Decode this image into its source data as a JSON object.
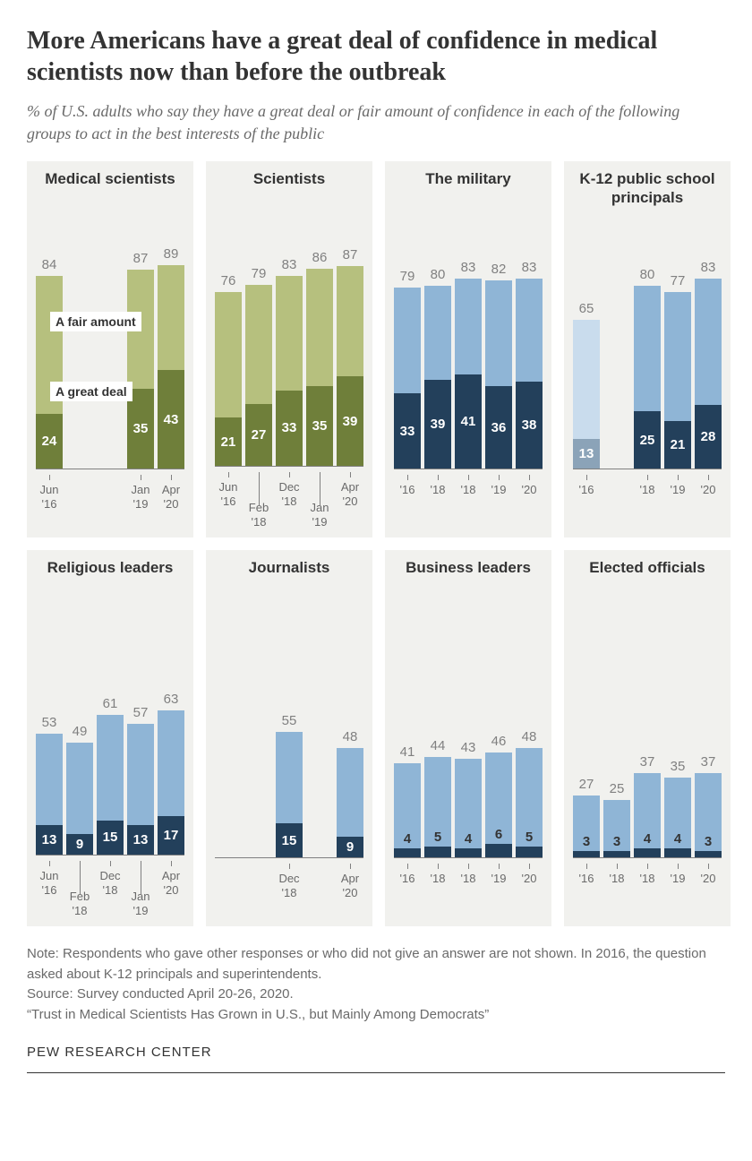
{
  "title": "More Americans have a great deal of confidence in medical scientists now than before the outbreak",
  "subtitle": "% of U.S. adults who say they have a great deal or fair amount of confidence in each of the following groups to act in the best interests of the public",
  "legend": {
    "fair": "A fair amount",
    "great": "A great deal"
  },
  "colors": {
    "green_light": "#b6c07e",
    "green_dark": "#6f7f3a",
    "blue_light": "#8fb5d6",
    "blue_dark": "#23405b",
    "blue_light_faded": "#c9dced",
    "blue_dark_faded": "#8ba3b8",
    "panel_bg": "#f1f1ee",
    "total_label": "#808080",
    "axis_label": "#6a6a6a"
  },
  "chart": {
    "yMax": 100,
    "barHeightPx": 256,
    "barWidthPx": 30,
    "barGapPx": 4
  },
  "panels": [
    {
      "title": "Medical scientists",
      "scheme": "green",
      "axisStyle": "twoLine",
      "showLegend": true,
      "bars": [
        {
          "label": [
            "Jun",
            "'16"
          ],
          "total": 84,
          "great": 24
        },
        {
          "spacer": true
        },
        {
          "spacer": true
        },
        {
          "label": [
            "Jan",
            "'19"
          ],
          "total": 87,
          "great": 35
        },
        {
          "label": [
            "Apr",
            "'20"
          ],
          "total": 89,
          "great": 43
        }
      ]
    },
    {
      "title": "Scientists",
      "scheme": "green",
      "axisStyle": "staggered",
      "bars": [
        {
          "label": [
            "Jun",
            "'16"
          ],
          "total": 76,
          "great": 21
        },
        {
          "label": [
            "Feb",
            "'18"
          ],
          "offset": true,
          "total": 79,
          "great": 27
        },
        {
          "label": [
            "Dec",
            "'18"
          ],
          "total": 83,
          "great": 33
        },
        {
          "label": [
            "Jan",
            "'19"
          ],
          "offset": true,
          "total": 86,
          "great": 35
        },
        {
          "label": [
            "Apr",
            "'20"
          ],
          "total": 87,
          "great": 39
        }
      ]
    },
    {
      "title": "The military",
      "scheme": "blue",
      "axisStyle": "short",
      "bars": [
        {
          "label": [
            "'16"
          ],
          "total": 79,
          "great": 33
        },
        {
          "label": [
            "'18"
          ],
          "total": 80,
          "great": 39
        },
        {
          "label": [
            "'18"
          ],
          "total": 83,
          "great": 41
        },
        {
          "label": [
            "'19"
          ],
          "total": 82,
          "great": 36
        },
        {
          "label": [
            "'20"
          ],
          "total": 83,
          "great": 38
        }
      ]
    },
    {
      "title": "K-12 public school principals",
      "scheme": "blue",
      "axisStyle": "short",
      "bars": [
        {
          "label": [
            "'16"
          ],
          "total": 65,
          "great": 13,
          "faded": true
        },
        {
          "spacer": true
        },
        {
          "label": [
            "'18"
          ],
          "total": 80,
          "great": 25
        },
        {
          "label": [
            "'19"
          ],
          "total": 77,
          "great": 21
        },
        {
          "label": [
            "'20"
          ],
          "total": 83,
          "great": 28
        }
      ]
    },
    {
      "title": "Religious leaders",
      "scheme": "blue",
      "axisStyle": "staggered",
      "bars": [
        {
          "label": [
            "Jun",
            "'16"
          ],
          "total": 53,
          "great": 13
        },
        {
          "label": [
            "Feb",
            "'18"
          ],
          "offset": true,
          "total": 49,
          "great": 9
        },
        {
          "label": [
            "Dec",
            "'18"
          ],
          "total": 61,
          "great": 15
        },
        {
          "label": [
            "Jan",
            "'19"
          ],
          "offset": true,
          "total": 57,
          "great": 13
        },
        {
          "label": [
            "Apr",
            "'20"
          ],
          "total": 63,
          "great": 17
        }
      ]
    },
    {
      "title": "Journalists",
      "scheme": "blue",
      "axisStyle": "twoLine",
      "bars": [
        {
          "spacer": true
        },
        {
          "spacer": true
        },
        {
          "label": [
            "Dec",
            "'18"
          ],
          "total": 55,
          "great": 15
        },
        {
          "spacer": true
        },
        {
          "label": [
            "Apr",
            "'20"
          ],
          "total": 48,
          "great": 9
        }
      ]
    },
    {
      "title": "Business leaders",
      "scheme": "blue",
      "axisStyle": "short",
      "bars": [
        {
          "label": [
            "'16"
          ],
          "total": 41,
          "great": 4,
          "darkText": true
        },
        {
          "label": [
            "'18"
          ],
          "total": 44,
          "great": 5,
          "darkText": true
        },
        {
          "label": [
            "'18"
          ],
          "total": 43,
          "great": 4,
          "darkText": true
        },
        {
          "label": [
            "'19"
          ],
          "total": 46,
          "great": 6,
          "darkText": true
        },
        {
          "label": [
            "'20"
          ],
          "total": 48,
          "great": 5,
          "darkText": true
        }
      ]
    },
    {
      "title": "Elected officials",
      "scheme": "blue",
      "axisStyle": "short",
      "bars": [
        {
          "label": [
            "'16"
          ],
          "total": 27,
          "great": 3,
          "darkText": true
        },
        {
          "label": [
            "'18"
          ],
          "total": 25,
          "great": 3,
          "darkText": true
        },
        {
          "label": [
            "'18"
          ],
          "total": 37,
          "great": 4,
          "darkText": true
        },
        {
          "label": [
            "'19"
          ],
          "total": 35,
          "great": 4,
          "darkText": true
        },
        {
          "label": [
            "'20"
          ],
          "total": 37,
          "great": 3,
          "darkText": true
        }
      ]
    }
  ],
  "notes": [
    "Note: Respondents who gave other responses or who did not give an answer are not shown. In 2016, the question asked about K-12 principals and superintendents.",
    "Source: Survey conducted April 20-26, 2020.",
    "“Trust in Medical Scientists Has Grown in U.S., but Mainly Among Democrats”"
  ],
  "brand": "PEW RESEARCH CENTER"
}
